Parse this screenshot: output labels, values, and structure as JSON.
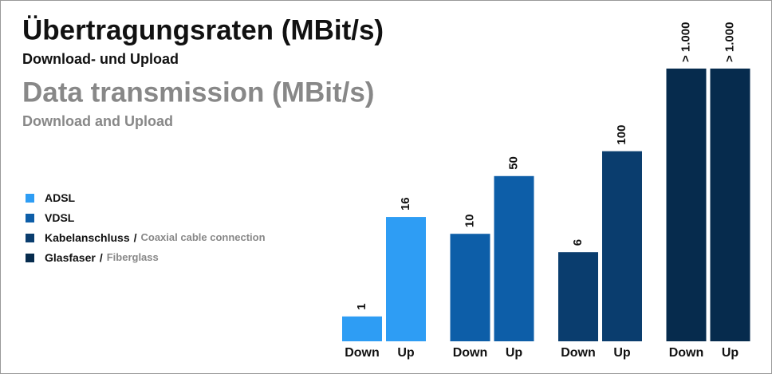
{
  "chart_data": {
    "type": "bar",
    "title": "Übertragungsraten (MBit/s)",
    "subtitle": "Download- und Upload",
    "title_en": "Data transmission (MBit/s)",
    "subtitle_en": "Download and Upload",
    "categories": [
      "Down",
      "Up"
    ],
    "log_scale": true,
    "ylim": [
      0.5,
      1000
    ],
    "legend_position": "left",
    "legend_separator": "/",
    "series": [
      {
        "name": "ADSL",
        "color": "#2e9df4",
        "values": [
          1,
          16
        ]
      },
      {
        "name": "VDSL",
        "color": "#0d5ea8",
        "values": [
          10,
          50
        ]
      },
      {
        "name": "Kabelanschluss",
        "name_en": "Coaxial cable connection",
        "color": "#0a3d6e",
        "values": [
          6,
          100
        ]
      },
      {
        "name": "Glasfaser",
        "name_en": "Fiberglass",
        "color": "#062b4d",
        "values": [
          1000,
          1000
        ],
        "value_labels": [
          "> 1.000",
          "> 1.000"
        ]
      }
    ]
  }
}
